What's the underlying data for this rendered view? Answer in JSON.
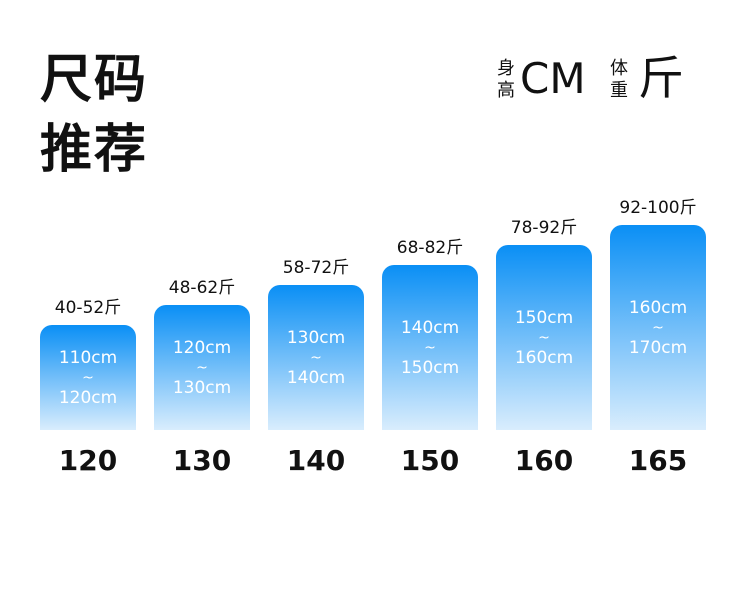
{
  "title": [
    "尺码",
    "推荐"
  ],
  "units": {
    "height_label": [
      "身",
      "高"
    ],
    "height_unit": "CM",
    "weight_label": [
      "体",
      "重"
    ],
    "weight_unit": "斤"
  },
  "columns": [
    {
      "weight": "40-52斤",
      "height_from": "110cm",
      "sep": "~",
      "height_to": "120cm",
      "size": "120"
    },
    {
      "weight": "48-62斤",
      "height_from": "120cm",
      "sep": "~",
      "height_to": "130cm",
      "size": "130"
    },
    {
      "weight": "58-72斤",
      "height_from": "130cm",
      "sep": "~",
      "height_to": "140cm",
      "size": "140"
    },
    {
      "weight": "68-82斤",
      "height_from": "140cm",
      "sep": "~",
      "height_to": "150cm",
      "size": "150"
    },
    {
      "weight": "78-92斤",
      "height_from": "150cm",
      "sep": "~",
      "height_to": "160cm",
      "size": "160"
    },
    {
      "weight": "92-100斤",
      "height_from": "160cm",
      "sep": "~",
      "height_to": "170cm",
      "size": "165"
    }
  ]
}
